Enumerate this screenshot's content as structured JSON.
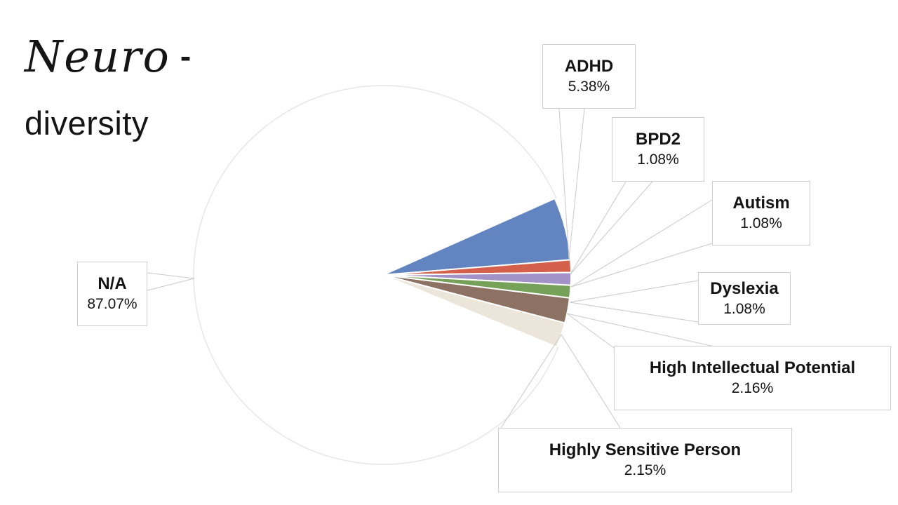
{
  "title": {
    "script_word": "Neuro",
    "dash": "-",
    "plain_word": "diversity"
  },
  "chart_data": {
    "type": "pie",
    "title": "Neuro-diversity",
    "legend": "none, labels shown as callout boxes with leader lines",
    "start_angle_deg": -24.0,
    "slices": [
      {
        "label": "ADHD",
        "value": 5.38,
        "display": "5.38%",
        "color": "#6285c1"
      },
      {
        "label": "BPD2",
        "value": 1.08,
        "display": "1.08%",
        "color": "#d4604b"
      },
      {
        "label": "Autism",
        "value": 1.08,
        "display": "1.08%",
        "color": "#a392c8"
      },
      {
        "label": "Dyslexia",
        "value": 1.08,
        "display": "1.08%",
        "color": "#76a158"
      },
      {
        "label": "High Intellectual Potential",
        "value": 2.16,
        "display": "2.16%",
        "color": "#8d7263"
      },
      {
        "label": "Highly Sensitive Person",
        "value": 2.15,
        "display": "2.15%",
        "color": "#ece6da"
      },
      {
        "label": "N/A",
        "value": 87.07,
        "display": "87.07%",
        "color": "#ffffff"
      }
    ],
    "colors": {
      "background": "#ffffff",
      "circle_outline": "#e7e7e7",
      "leader_line": "#c9c9c9",
      "callout_border": "#cfcfcf",
      "text": "#141414"
    }
  }
}
